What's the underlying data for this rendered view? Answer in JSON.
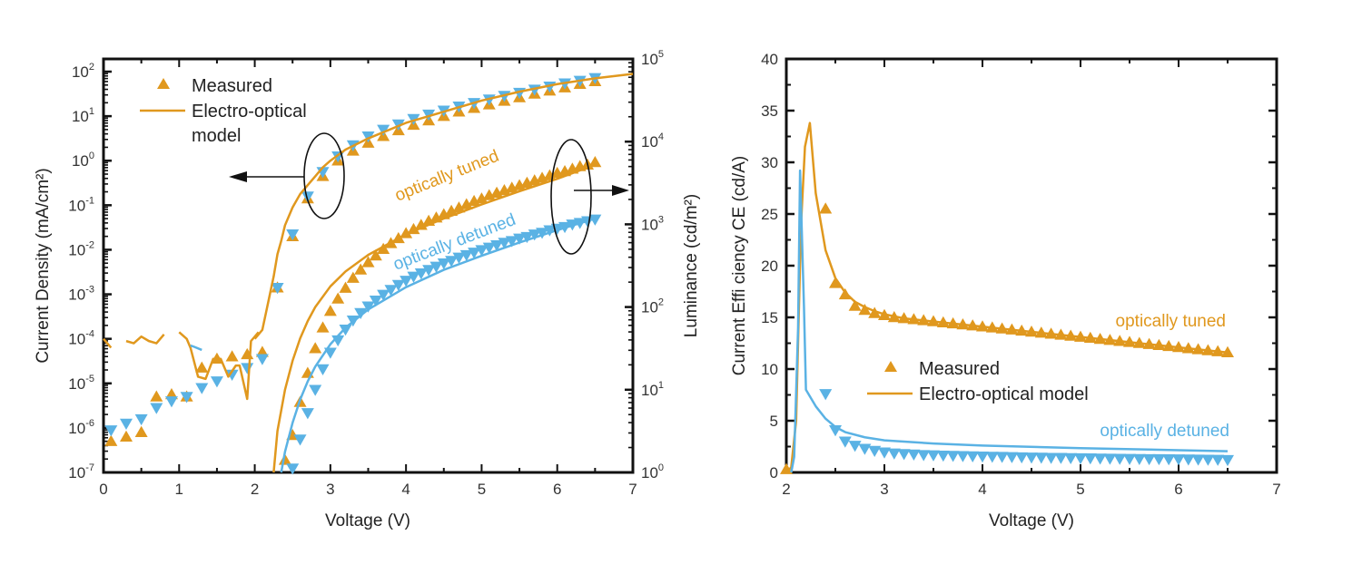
{
  "colors": {
    "tuned": "#E0981E",
    "detuned": "#5AB2E4",
    "axis": "#111111"
  },
  "chart_data": [
    {
      "type": "scatter",
      "panel": "left",
      "title": "",
      "xlabel": "Voltage (V)",
      "ylabel": "Current Density (mA/cm²)",
      "y2label": "Luminance (cd/m²)",
      "xlim": [
        0,
        7
      ],
      "ylim_log10": [
        -7,
        2
      ],
      "y2lim_log10": [
        0,
        5
      ],
      "yscale": "log",
      "xticks": [
        "0",
        "1",
        "2",
        "3",
        "4",
        "5",
        "6",
        "7"
      ],
      "yticks": [
        {
          "base": "10",
          "exp": "2"
        },
        {
          "base": "10",
          "exp": "1"
        },
        {
          "base": "10",
          "exp": "0"
        },
        {
          "base": "10",
          "exp": "-1"
        },
        {
          "base": "10",
          "exp": "-2"
        },
        {
          "base": "10",
          "exp": "-3"
        },
        {
          "base": "10",
          "exp": "-4"
        },
        {
          "base": "10",
          "exp": "-5"
        },
        {
          "base": "10",
          "exp": "-6"
        },
        {
          "base": "10",
          "exp": "-7"
        }
      ],
      "y2ticks": [
        {
          "base": "10",
          "exp": "5"
        },
        {
          "base": "10",
          "exp": "4"
        },
        {
          "base": "10",
          "exp": "3"
        },
        {
          "base": "10",
          "exp": "2"
        },
        {
          "base": "10",
          "exp": "1"
        },
        {
          "base": "10",
          "exp": "0"
        }
      ],
      "legend": {
        "position": "top-left",
        "entries": [
          "Measured",
          "Electro-optical",
          "model"
        ]
      },
      "annotations": {
        "tuned": "optically tuned",
        "detuned": "optically detuned"
      },
      "series": [
        {
          "name": "Current density tuned measured",
          "axis": "left",
          "marker": "triangle-up",
          "color": "tuned",
          "x": [
            0.1,
            0.3,
            0.5,
            0.7,
            0.9,
            1.1,
            1.3,
            1.5,
            1.7,
            1.9,
            2.1,
            2.3,
            2.5,
            2.7,
            2.9,
            3.1,
            3.3,
            3.5,
            3.7,
            3.9,
            4.1,
            4.3,
            4.5,
            4.7,
            4.9,
            5.1,
            5.3,
            5.5,
            5.7,
            5.9,
            6.1,
            6.3,
            6.5
          ],
          "log10y": [
            -6.3,
            -6.2,
            -6.1,
            -5.3,
            -5.25,
            -5.3,
            -4.65,
            -4.45,
            -4.4,
            -4.35,
            -4.3,
            -2.85,
            -1.7,
            -0.85,
            -0.35,
            0.0,
            0.22,
            0.4,
            0.55,
            0.68,
            0.8,
            0.9,
            1.0,
            1.1,
            1.18,
            1.26,
            1.34,
            1.42,
            1.5,
            1.57,
            1.64,
            1.72,
            1.78
          ]
        },
        {
          "name": "Current density detuned measured",
          "axis": "left",
          "marker": "triangle-down",
          "color": "detuned",
          "x": [
            0.1,
            0.3,
            0.5,
            0.7,
            0.9,
            1.1,
            1.3,
            1.5,
            1.7,
            1.9,
            2.1,
            2.3,
            2.5,
            2.7,
            2.9,
            3.1,
            3.3,
            3.5,
            3.7,
            3.9,
            4.1,
            4.3,
            4.5,
            4.7,
            4.9,
            5.1,
            5.3,
            5.5,
            5.7,
            5.9,
            6.1,
            6.3,
            6.5
          ],
          "log10y": [
            -6.05,
            -5.9,
            -5.8,
            -5.55,
            -5.4,
            -5.3,
            -5.1,
            -4.95,
            -4.8,
            -4.65,
            -4.45,
            -2.85,
            -1.65,
            -0.8,
            -0.25,
            0.1,
            0.35,
            0.55,
            0.7,
            0.82,
            0.94,
            1.04,
            1.13,
            1.22,
            1.3,
            1.38,
            1.46,
            1.53,
            1.6,
            1.67,
            1.74,
            1.8,
            1.86
          ]
        },
        {
          "name": "Current density model",
          "axis": "left",
          "type": "line",
          "color": "tuned",
          "x": [
            2.0,
            2.05,
            2.1,
            2.15,
            2.2,
            2.25,
            2.3,
            2.35,
            2.4,
            2.5,
            2.6,
            2.7,
            2.8,
            2.9,
            3.0,
            3.2,
            3.5,
            4.0,
            4.5,
            5.0,
            5.5,
            6.0,
            6.5,
            7.0
          ],
          "log10y": [
            -4.0,
            -3.9,
            -3.8,
            -3.4,
            -3.0,
            -2.6,
            -2.1,
            -1.8,
            -1.45,
            -1.05,
            -0.75,
            -0.55,
            -0.35,
            -0.15,
            0.0,
            0.25,
            0.5,
            0.85,
            1.1,
            1.35,
            1.55,
            1.72,
            1.85,
            1.95
          ]
        },
        {
          "name": "Current density model low-V tuned",
          "axis": "left",
          "type": "line",
          "color": "tuned",
          "segments": [
            {
              "x": [
                0.0,
                0.1
              ],
              "log10y": [
                -4.0,
                -4.2
              ]
            },
            {
              "x": [
                0.3,
                0.4,
                0.5,
                0.6,
                0.7,
                0.8
              ],
              "log10y": [
                -4.05,
                -4.1,
                -3.95,
                -4.05,
                -4.1,
                -3.9
              ]
            },
            {
              "x": [
                1.0,
                1.1,
                1.15,
                1.25,
                1.35,
                1.45,
                1.55,
                1.65,
                1.75,
                1.8,
                1.9,
                1.95,
                2.05
              ],
              "log10y": [
                -3.85,
                -4.0,
                -4.2,
                -4.85,
                -4.9,
                -4.45,
                -4.45,
                -4.85,
                -4.6,
                -4.6,
                -5.35,
                -4.05,
                -3.85
              ]
            }
          ]
        },
        {
          "name": "Current density model low-V detuned",
          "axis": "left",
          "type": "line",
          "color": "detuned",
          "segments": [
            {
              "x": [
                1.15,
                1.2,
                1.3
              ],
              "log10y": [
                -4.15,
                -4.18,
                -4.25
              ]
            }
          ]
        },
        {
          "name": "Luminance tuned measured",
          "axis": "right",
          "marker": "triangle-up",
          "color": "tuned",
          "x": [
            2.4,
            2.5,
            2.6,
            2.7,
            2.8,
            2.9,
            3.0,
            3.1,
            3.2,
            3.3,
            3.4,
            3.5,
            3.6,
            3.7,
            3.8,
            3.9,
            4.0,
            4.1,
            4.2,
            4.3,
            4.4,
            4.5,
            4.6,
            4.7,
            4.8,
            4.9,
            5.0,
            5.1,
            5.2,
            5.3,
            5.4,
            5.5,
            5.6,
            5.7,
            5.8,
            5.9,
            6.0,
            6.1,
            6.2,
            6.3,
            6.4,
            6.5
          ],
          "log10y": [
            0.15,
            0.45,
            0.85,
            1.2,
            1.5,
            1.75,
            1.95,
            2.1,
            2.23,
            2.35,
            2.45,
            2.54,
            2.62,
            2.7,
            2.77,
            2.83,
            2.89,
            2.94,
            2.99,
            3.04,
            3.08,
            3.12,
            3.16,
            3.2,
            3.24,
            3.28,
            3.31,
            3.35,
            3.38,
            3.41,
            3.44,
            3.47,
            3.5,
            3.53,
            3.56,
            3.59,
            3.62,
            3.64,
            3.67,
            3.7,
            3.72,
            3.75
          ]
        },
        {
          "name": "Luminance detuned measured",
          "axis": "right",
          "marker": "triangle-down",
          "color": "detuned",
          "x": [
            2.5,
            2.6,
            2.7,
            2.8,
            2.9,
            3.0,
            3.1,
            3.2,
            3.3,
            3.4,
            3.5,
            3.6,
            3.7,
            3.8,
            3.9,
            4.0,
            4.1,
            4.2,
            4.3,
            4.4,
            4.5,
            4.6,
            4.7,
            4.8,
            4.9,
            5.0,
            5.1,
            5.2,
            5.3,
            5.4,
            5.5,
            5.6,
            5.7,
            5.8,
            5.9,
            6.0,
            6.1,
            6.2,
            6.3,
            6.4,
            6.5
          ],
          "log10y": [
            0.05,
            0.4,
            0.72,
            1.0,
            1.25,
            1.45,
            1.6,
            1.73,
            1.84,
            1.93,
            2.01,
            2.08,
            2.15,
            2.21,
            2.27,
            2.32,
            2.37,
            2.41,
            2.45,
            2.49,
            2.53,
            2.56,
            2.6,
            2.63,
            2.66,
            2.69,
            2.72,
            2.75,
            2.78,
            2.8,
            2.83,
            2.85,
            2.88,
            2.9,
            2.93,
            2.95,
            2.97,
            3.0,
            3.02,
            3.04,
            3.06
          ]
        },
        {
          "name": "Luminance tuned model",
          "axis": "right",
          "type": "line",
          "color": "tuned",
          "x": [
            2.25,
            2.3,
            2.4,
            2.5,
            2.6,
            2.7,
            2.8,
            3.0,
            3.2,
            3.5,
            4.0,
            4.5,
            5.0,
            5.5,
            6.0,
            6.5
          ],
          "log10y": [
            0.0,
            0.5,
            1.0,
            1.35,
            1.62,
            1.83,
            2.0,
            2.25,
            2.43,
            2.63,
            2.88,
            3.07,
            3.24,
            3.4,
            3.55,
            3.72
          ]
        },
        {
          "name": "Luminance detuned model",
          "axis": "right",
          "type": "line",
          "color": "detuned",
          "x": [
            2.35,
            2.4,
            2.5,
            2.6,
            2.7,
            2.8,
            3.0,
            3.2,
            3.5,
            4.0,
            4.5,
            5.0,
            5.5,
            6.0,
            6.5
          ],
          "log10y": [
            0.0,
            0.25,
            0.6,
            0.88,
            1.1,
            1.28,
            1.55,
            1.75,
            1.97,
            2.24,
            2.45,
            2.62,
            2.78,
            2.93,
            3.07
          ]
        }
      ]
    },
    {
      "type": "scatter",
      "panel": "right",
      "title": "",
      "xlabel": "Voltage (V)",
      "ylabel": "Current Effi ciency CE (cd/A)",
      "xlim": [
        2,
        7
      ],
      "ylim": [
        0,
        40
      ],
      "xticks": [
        "2",
        "3",
        "4",
        "5",
        "6",
        "7"
      ],
      "yticks": [
        "0",
        "5",
        "10",
        "15",
        "20",
        "25",
        "30",
        "35",
        "40"
      ],
      "legend": {
        "position": "center",
        "entries": [
          "Measured",
          "Electro-optical model"
        ]
      },
      "annotations": {
        "tuned": "optically tuned",
        "detuned": "optically detuned"
      },
      "series": [
        {
          "name": "CE tuned measured",
          "marker": "triangle-up",
          "color": "tuned",
          "x": [
            2.0,
            2.4,
            2.5,
            2.6,
            2.7,
            2.8,
            2.9,
            3.0,
            3.1,
            3.2,
            3.3,
            3.4,
            3.5,
            3.6,
            3.7,
            3.8,
            3.9,
            4.0,
            4.1,
            4.2,
            4.3,
            4.4,
            4.5,
            4.6,
            4.7,
            4.8,
            4.9,
            5.0,
            5.1,
            5.2,
            5.3,
            5.4,
            5.5,
            5.6,
            5.7,
            5.8,
            5.9,
            6.0,
            6.1,
            6.2,
            6.3,
            6.4,
            6.5
          ],
          "y": [
            0.3,
            25.5,
            18.3,
            17.2,
            16.1,
            15.7,
            15.4,
            15.2,
            15.0,
            14.9,
            14.8,
            14.7,
            14.6,
            14.5,
            14.4,
            14.3,
            14.2,
            14.1,
            14.0,
            13.9,
            13.8,
            13.7,
            13.6,
            13.5,
            13.4,
            13.3,
            13.2,
            13.1,
            13.0,
            12.9,
            12.8,
            12.7,
            12.6,
            12.5,
            12.4,
            12.3,
            12.2,
            12.1,
            12.0,
            11.9,
            11.8,
            11.7,
            11.6
          ]
        },
        {
          "name": "CE detuned measured",
          "marker": "triangle-down",
          "color": "detuned",
          "x": [
            2.4,
            2.5,
            2.6,
            2.7,
            2.8,
            2.9,
            3.0,
            3.1,
            3.2,
            3.3,
            3.4,
            3.5,
            3.6,
            3.7,
            3.8,
            3.9,
            4.0,
            4.1,
            4.2,
            4.3,
            4.4,
            4.5,
            4.6,
            4.7,
            4.8,
            4.9,
            5.0,
            5.1,
            5.2,
            5.3,
            5.4,
            5.5,
            5.6,
            5.7,
            5.8,
            5.9,
            6.0,
            6.1,
            6.2,
            6.3,
            6.4,
            6.5
          ],
          "y": [
            7.6,
            4.1,
            3.0,
            2.6,
            2.3,
            2.1,
            1.95,
            1.85,
            1.8,
            1.75,
            1.7,
            1.68,
            1.65,
            1.62,
            1.6,
            1.58,
            1.56,
            1.54,
            1.52,
            1.5,
            1.48,
            1.46,
            1.45,
            1.43,
            1.42,
            1.4,
            1.39,
            1.38,
            1.36,
            1.35,
            1.34,
            1.33,
            1.32,
            1.31,
            1.3,
            1.29,
            1.28,
            1.27,
            1.26,
            1.25,
            1.24,
            1.22
          ]
        },
        {
          "name": "CE tuned model",
          "type": "line",
          "color": "tuned",
          "x": [
            2.0,
            2.05,
            2.1,
            2.15,
            2.19,
            2.24,
            2.3,
            2.4,
            2.5,
            2.6,
            2.7,
            2.8,
            2.9,
            3.0,
            3.2,
            3.5,
            4.0,
            4.5,
            5.0,
            5.5,
            6.0,
            6.5
          ],
          "y": [
            0.0,
            0.5,
            5.0,
            24.0,
            31.5,
            33.8,
            27.0,
            21.5,
            18.8,
            17.4,
            16.5,
            16.0,
            15.6,
            15.3,
            14.9,
            14.6,
            14.1,
            13.6,
            13.1,
            12.6,
            12.1,
            11.6
          ]
        },
        {
          "name": "CE detuned model",
          "type": "line",
          "color": "detuned",
          "x": [
            2.05,
            2.08,
            2.12,
            2.14,
            2.18,
            2.2,
            2.3,
            2.4,
            2.5,
            2.6,
            2.8,
            3.0,
            3.5,
            4.0,
            5.0,
            6.0,
            6.5
          ],
          "y": [
            0.0,
            1.5,
            14.0,
            29.2,
            16.0,
            8.0,
            6.4,
            5.2,
            4.4,
            3.9,
            3.4,
            3.1,
            2.8,
            2.6,
            2.35,
            2.15,
            2.05
          ]
        }
      ]
    }
  ]
}
